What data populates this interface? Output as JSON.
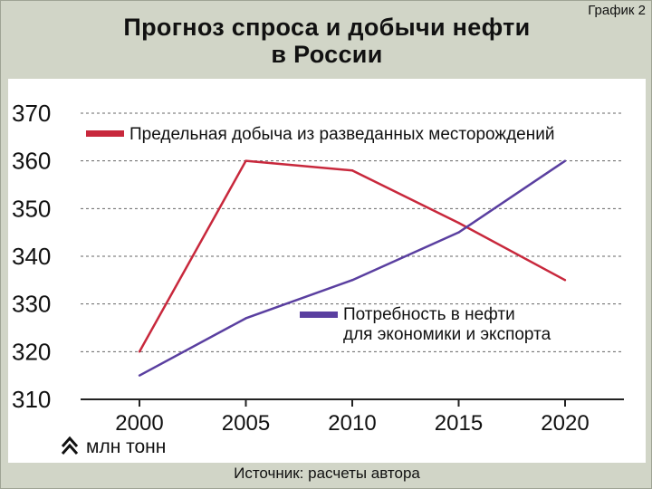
{
  "header": {
    "chart_label": "График 2",
    "title_line1": "Прогноз спроса и добычи нефти",
    "title_line2": "в России"
  },
  "footer": {
    "source": "Источник: расчеты автора"
  },
  "colors": {
    "frame_bg": "#d1d5c7",
    "panel_bg": "#ffffff",
    "series_production": "#c8283c",
    "series_demand": "#5a3fa0",
    "grid": "#666666"
  },
  "chart_data": {
    "type": "line",
    "title": "Прогноз спроса и добычи нефти в России",
    "x": [
      2000,
      2005,
      2010,
      2015,
      2020
    ],
    "ylim": [
      310,
      370
    ],
    "yticks": [
      310,
      320,
      330,
      340,
      350,
      360,
      370
    ],
    "xlabel": "",
    "ylabel": "",
    "unit_label": "млн тонн",
    "grid": true,
    "grid_style": "dashed-horizontal",
    "legend_placement": "inline",
    "series": [
      {
        "name": "Предельная добыча из разведанных месторождений",
        "legend_lines": [
          "Предельная добыча из разведанных месторождений"
        ],
        "values": [
          320,
          360,
          358,
          347,
          335
        ]
      },
      {
        "name": "Потребность в нефти для экономики и экспорта",
        "legend_lines": [
          "Потребность в нефти",
          "для экономики и экспорта"
        ],
        "values": [
          315,
          327,
          335,
          345,
          360
        ]
      }
    ]
  }
}
